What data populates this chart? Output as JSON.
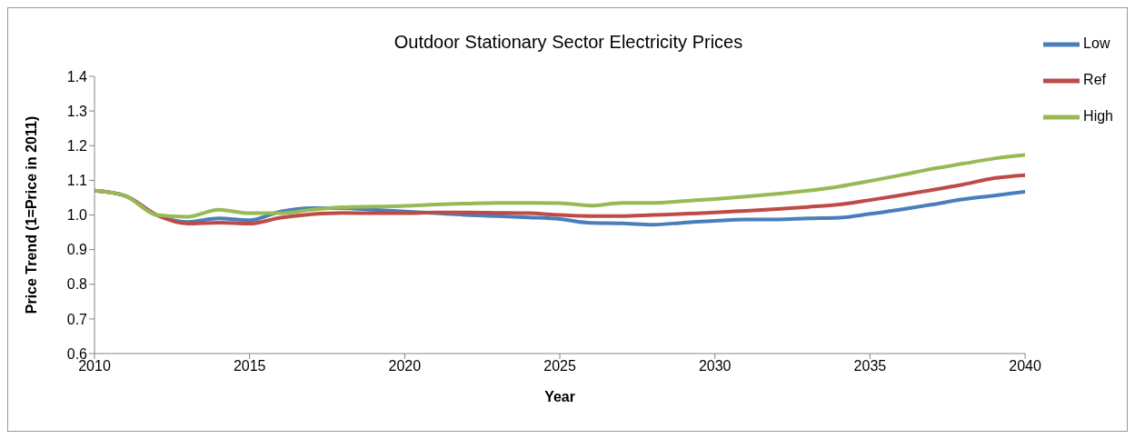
{
  "chart_data": {
    "type": "line",
    "title": "Outdoor Stationary Sector Electricity Prices",
    "xlabel": "Year",
    "ylabel": "Price Trend (1=Price in 2011)",
    "x": [
      2010,
      2011,
      2012,
      2013,
      2014,
      2015,
      2016,
      2017,
      2018,
      2019,
      2020,
      2021,
      2022,
      2023,
      2024,
      2025,
      2026,
      2027,
      2028,
      2029,
      2030,
      2031,
      2032,
      2033,
      2034,
      2035,
      2036,
      2037,
      2038,
      2039,
      2040
    ],
    "series": [
      {
        "name": "Low",
        "color": "#4a7ebb",
        "values": [
          1.07,
          1.055,
          1.0,
          0.98,
          0.99,
          0.985,
          1.01,
          1.02,
          1.02,
          1.015,
          1.01,
          1.005,
          1.0,
          0.997,
          0.993,
          0.988,
          0.977,
          0.976,
          0.972,
          0.978,
          0.983,
          0.987,
          0.987,
          0.99,
          0.992,
          1.003,
          1.016,
          1.03,
          1.045,
          1.056,
          1.067
        ]
      },
      {
        "name": "Ref",
        "color": "#be4b48",
        "values": [
          1.07,
          1.055,
          1.0,
          0.975,
          0.978,
          0.975,
          0.992,
          1.002,
          1.006,
          1.005,
          1.005,
          1.007,
          1.007,
          1.006,
          1.005,
          1.0,
          0.997,
          0.997,
          1.0,
          1.003,
          1.007,
          1.012,
          1.017,
          1.023,
          1.03,
          1.043,
          1.057,
          1.072,
          1.088,
          1.106,
          1.115
        ]
      },
      {
        "name": "High",
        "color": "#98b954",
        "values": [
          1.07,
          1.055,
          1.0,
          0.995,
          1.015,
          1.005,
          1.005,
          1.015,
          1.022,
          1.024,
          1.026,
          1.03,
          1.033,
          1.035,
          1.035,
          1.034,
          1.027,
          1.035,
          1.035,
          1.04,
          1.046,
          1.053,
          1.061,
          1.07,
          1.082,
          1.098,
          1.115,
          1.133,
          1.148,
          1.163,
          1.173
        ]
      }
    ],
    "xlim": [
      2010,
      2040
    ],
    "xticks": [
      2010,
      2015,
      2020,
      2025,
      2030,
      2035,
      2040
    ],
    "ylim": [
      0.6,
      1.4
    ],
    "yticks": [
      {
        "value": 0.6,
        "label": "0.6"
      },
      {
        "value": 0.7,
        "label": "0.7"
      },
      {
        "value": 0.8,
        "label": "0.8"
      },
      {
        "value": 0.9,
        "label": "0.9"
      },
      {
        "value": 1,
        "label": "1.0"
      },
      {
        "value": 1.1,
        "label": "1.1"
      },
      {
        "value": 1.2,
        "label": "1.2"
      },
      {
        "value": 1.3,
        "label": "1.3"
      },
      {
        "value": 1.4,
        "label": "1.4"
      }
    ],
    "grid": false,
    "legend": "top right",
    "marker": "none",
    "line_style": "solid"
  }
}
